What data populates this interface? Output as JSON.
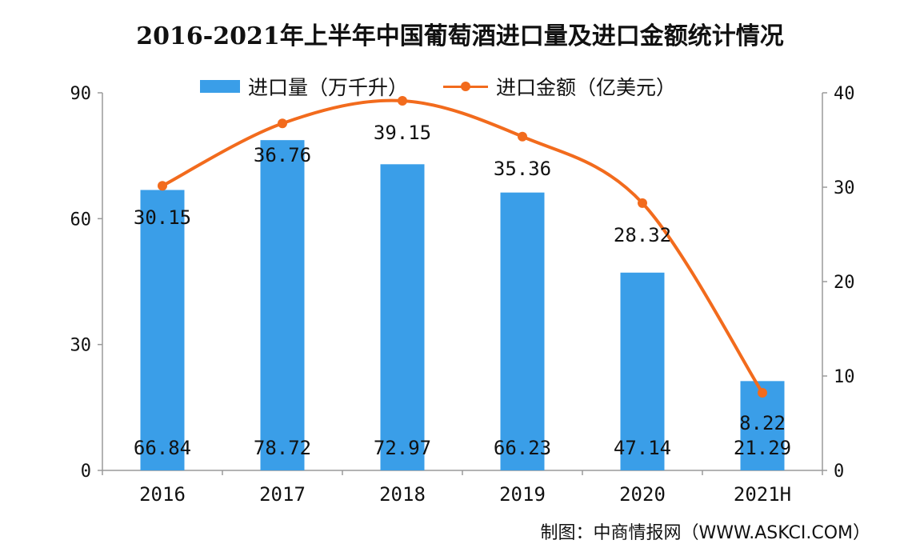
{
  "chart_data": {
    "type": "bar+line",
    "title": "2016-2021年上半年中国葡萄酒进口量及进口金额统计情况",
    "categories": [
      "2016",
      "2017",
      "2018",
      "2019",
      "2020",
      "2021H"
    ],
    "series": [
      {
        "name": "进口量（万千升）",
        "type": "bar",
        "axis": "left",
        "values": [
          66.84,
          78.72,
          72.97,
          66.23,
          47.14,
          21.29
        ]
      },
      {
        "name": "进口金额（亿美元）",
        "type": "line",
        "axis": "right",
        "values": [
          30.15,
          36.76,
          39.15,
          35.36,
          28.32,
          8.22
        ]
      }
    ],
    "y_left": {
      "min": 0,
      "max": 90,
      "ticks": [
        0,
        30,
        60,
        90
      ]
    },
    "y_right": {
      "min": 0,
      "max": 40,
      "ticks": [
        0,
        10,
        20,
        30,
        40
      ]
    },
    "legend_position": "top",
    "grid": false,
    "colors": {
      "bar": "#3a9ee8",
      "line": "#f26b1d"
    },
    "source": "制图：中商情报网（WWW.ASKCI.COM）"
  }
}
